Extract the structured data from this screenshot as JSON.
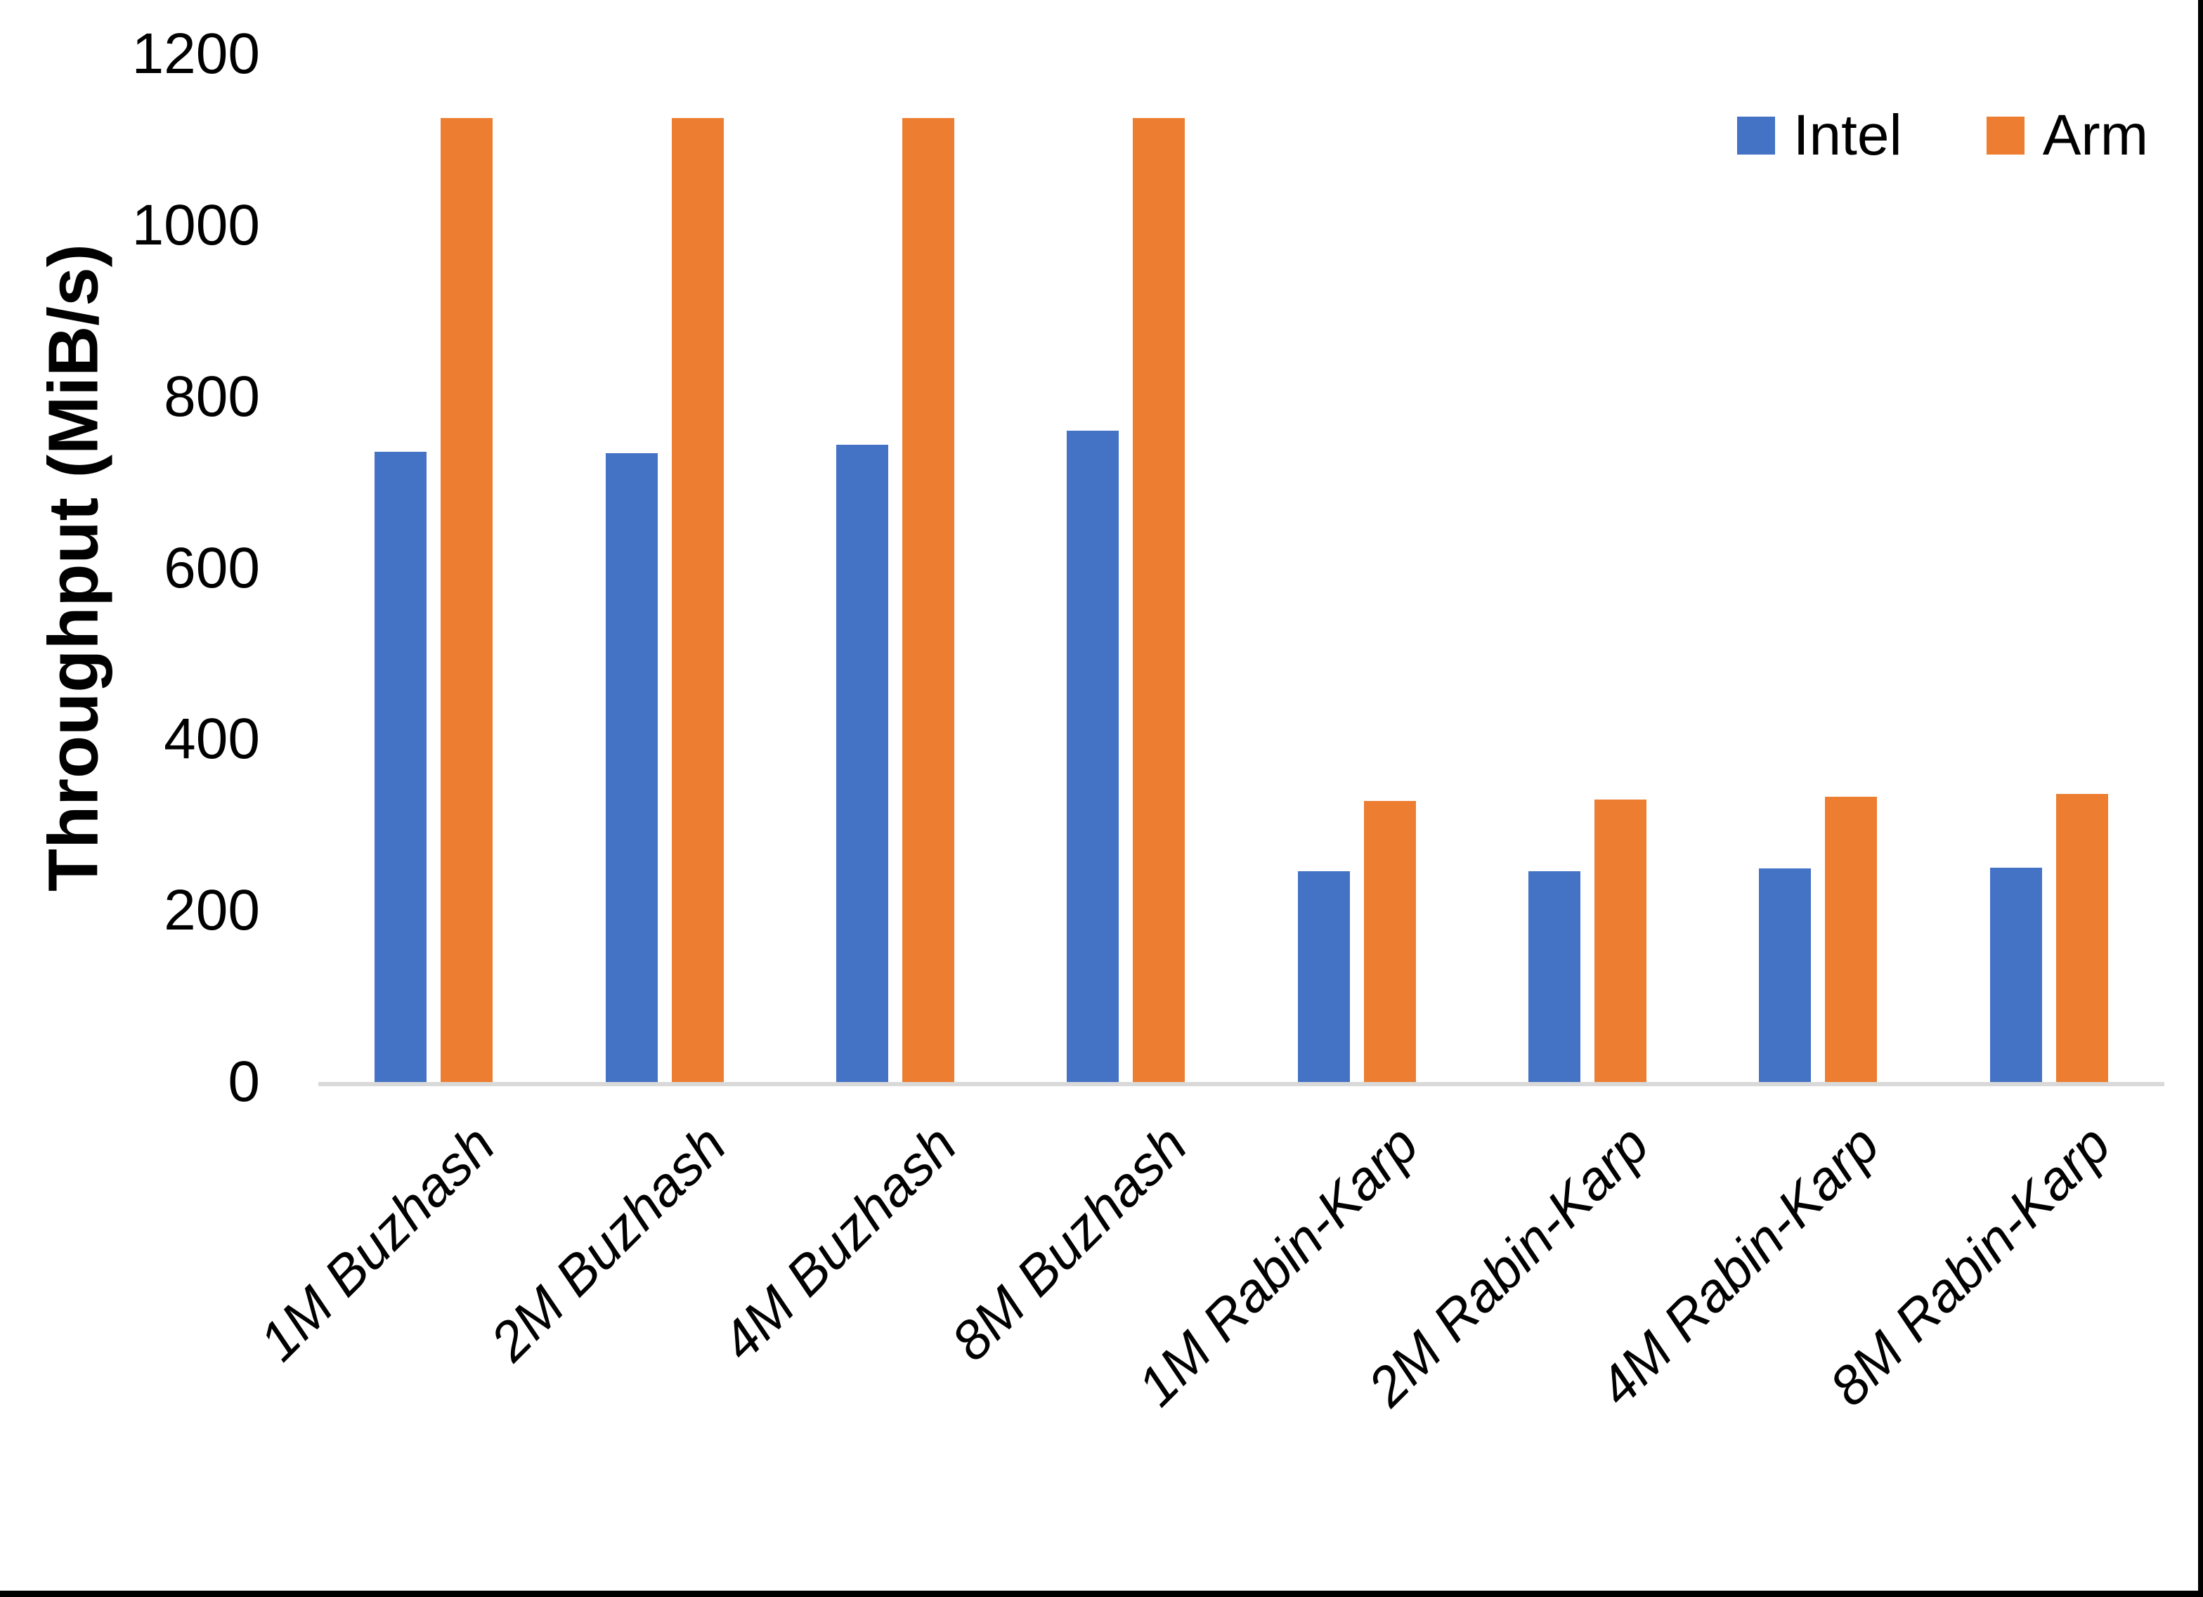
{
  "chart_data": {
    "type": "bar",
    "categories": [
      "1M Buzhash",
      "2M Buzhash",
      "4M Buzhash",
      "8M Buzhash",
      "1M Rabin-Karp",
      "2M Rabin-Karp",
      "4M Rabin-Karp",
      "8M Rabin-Karp"
    ],
    "series": [
      {
        "name": "Intel",
        "color": "#4472C4",
        "values": [
          736,
          734,
          744,
          760,
          246,
          246,
          249,
          250
        ]
      },
      {
        "name": "Arm",
        "color": "#ED7D31",
        "values": [
          1125,
          1125,
          1125,
          1125,
          328,
          330,
          333,
          336
        ]
      }
    ],
    "title": "",
    "xlabel": "",
    "ylabel": "Throughput (MiB/s)",
    "ylim": [
      0,
      1200
    ],
    "ytick_step": 200,
    "ytick_labels": [
      "0",
      "200",
      "400",
      "600",
      "800",
      "1000",
      "1200"
    ],
    "grid": false,
    "legend_position": "top-right"
  },
  "colors": {
    "axis_line": "#D9D9D9",
    "text": "#000000",
    "background": "#FFFFFF",
    "frame": "#000000"
  }
}
